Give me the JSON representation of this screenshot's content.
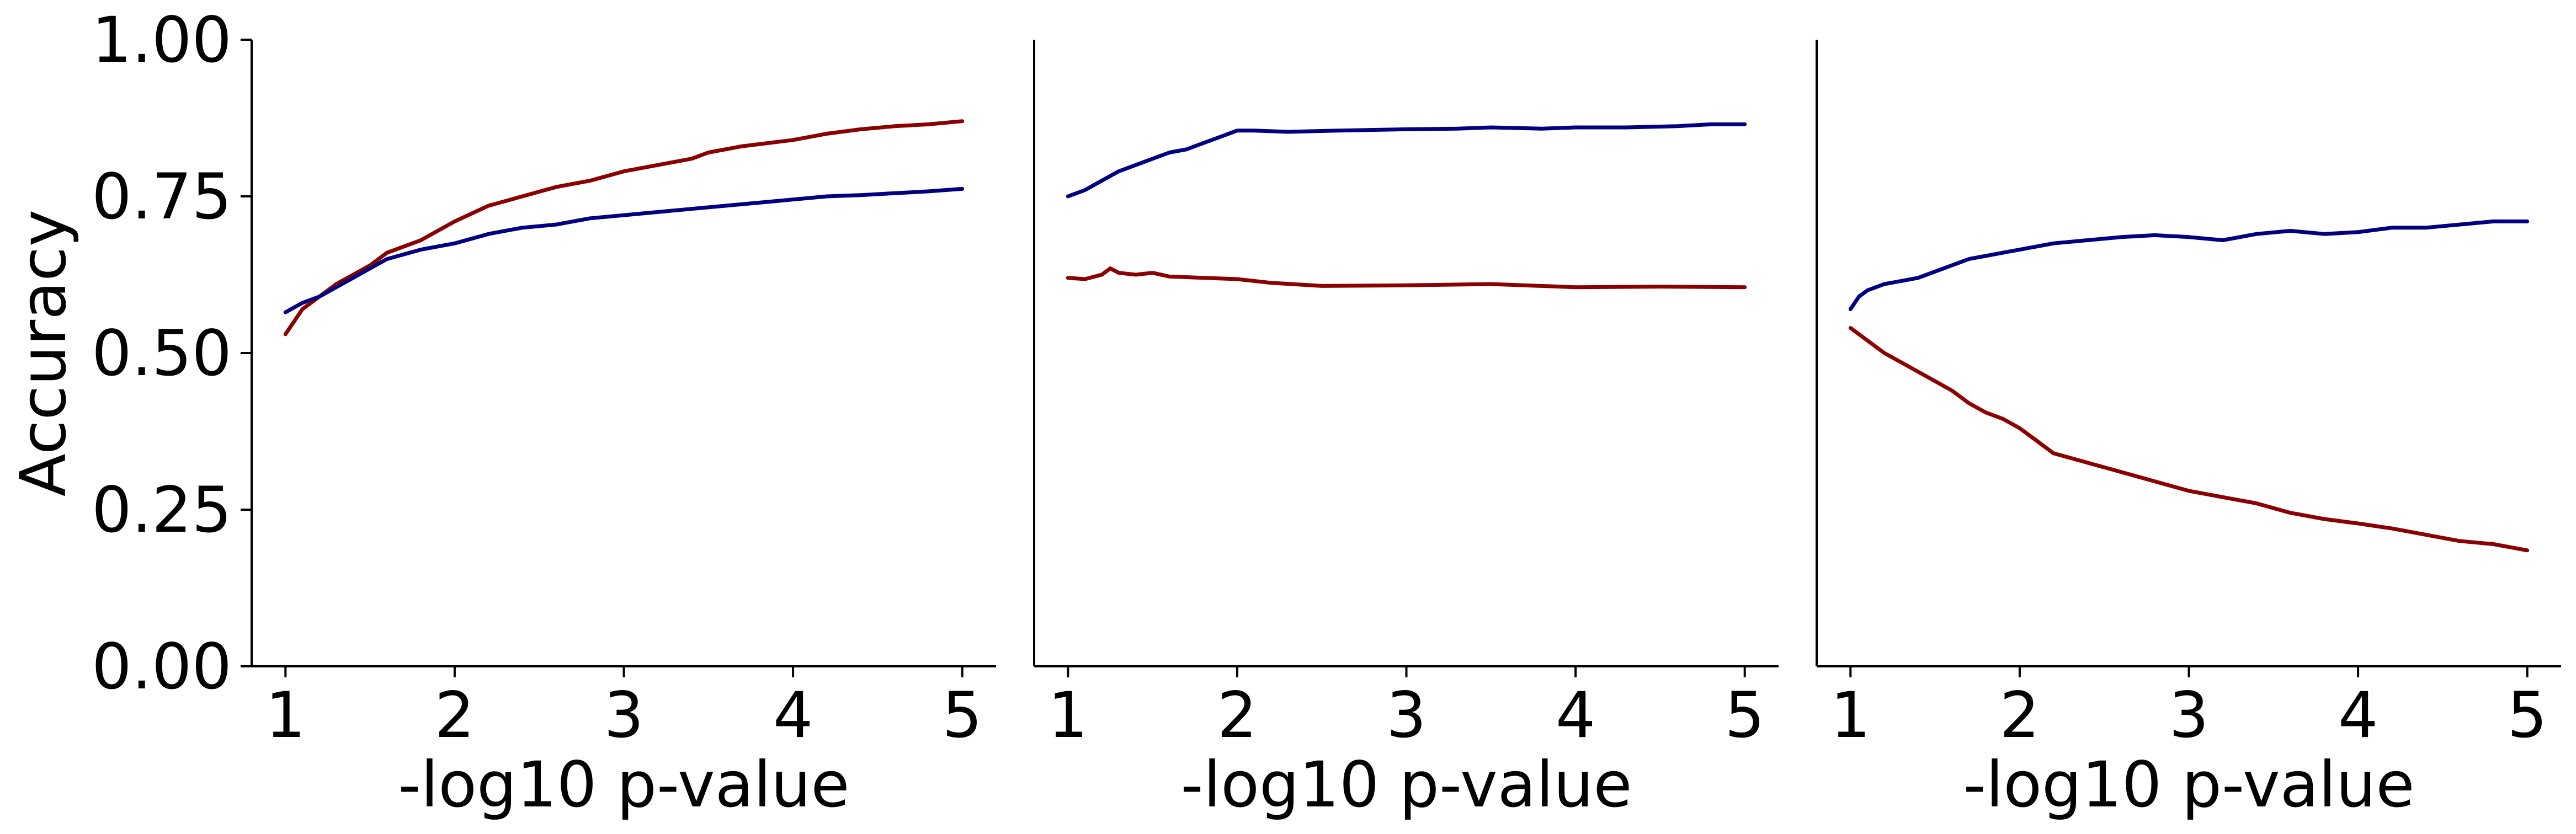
{
  "colors": {
    "red_series": "#8b0000",
    "blue_series": "#000080",
    "axis": "#000000"
  },
  "chart_data": [
    {
      "type": "line",
      "xlabel": "-log10 p-value",
      "ylabel": "Accuracy",
      "xlim": [
        0.8,
        5.2
      ],
      "ylim": [
        0.0,
        1.0
      ],
      "xticks": [
        "1",
        "2",
        "3",
        "4",
        "5"
      ],
      "yticks": [
        "0.00",
        "0.25",
        "0.50",
        "0.75",
        "1.00"
      ],
      "grid": false,
      "series": [
        {
          "color": "#8b0000",
          "x": [
            1.0,
            1.1,
            1.2,
            1.3,
            1.4,
            1.5,
            1.6,
            1.8,
            2.0,
            2.2,
            2.4,
            2.6,
            2.8,
            3.0,
            3.2,
            3.4,
            3.5,
            3.7,
            4.0,
            4.2,
            4.4,
            4.6,
            4.8,
            5.0
          ],
          "y": [
            0.53,
            0.57,
            0.59,
            0.61,
            0.625,
            0.64,
            0.66,
            0.68,
            0.71,
            0.735,
            0.75,
            0.765,
            0.775,
            0.79,
            0.8,
            0.81,
            0.82,
            0.83,
            0.84,
            0.85,
            0.857,
            0.862,
            0.865,
            0.87
          ]
        },
        {
          "color": "#000080",
          "x": [
            1.0,
            1.1,
            1.2,
            1.3,
            1.4,
            1.5,
            1.6,
            1.8,
            2.0,
            2.2,
            2.4,
            2.6,
            2.8,
            3.0,
            3.2,
            3.4,
            3.6,
            3.8,
            4.0,
            4.2,
            4.4,
            4.6,
            4.8,
            5.0
          ],
          "y": [
            0.565,
            0.58,
            0.59,
            0.605,
            0.62,
            0.635,
            0.65,
            0.665,
            0.675,
            0.69,
            0.7,
            0.705,
            0.715,
            0.72,
            0.725,
            0.73,
            0.735,
            0.74,
            0.745,
            0.75,
            0.752,
            0.755,
            0.758,
            0.762
          ]
        }
      ]
    },
    {
      "type": "line",
      "xlabel": "-log10 p-value",
      "ylabel": "",
      "xlim": [
        0.8,
        5.2
      ],
      "ylim": [
        0.0,
        1.0
      ],
      "xticks": [
        "1",
        "2",
        "3",
        "4",
        "5"
      ],
      "yticks": [],
      "grid": false,
      "series": [
        {
          "color": "#000080",
          "x": [
            1.0,
            1.1,
            1.2,
            1.3,
            1.4,
            1.5,
            1.6,
            1.7,
            1.8,
            1.9,
            2.0,
            2.1,
            2.3,
            2.6,
            3.0,
            3.3,
            3.5,
            3.8,
            4.0,
            4.3,
            4.6,
            4.8,
            5.0
          ],
          "y": [
            0.75,
            0.76,
            0.775,
            0.79,
            0.8,
            0.81,
            0.82,
            0.825,
            0.835,
            0.845,
            0.855,
            0.855,
            0.853,
            0.855,
            0.857,
            0.858,
            0.86,
            0.858,
            0.86,
            0.86,
            0.862,
            0.865,
            0.865
          ]
        },
        {
          "color": "#8b0000",
          "x": [
            1.0,
            1.1,
            1.2,
            1.25,
            1.3,
            1.4,
            1.5,
            1.6,
            1.8,
            2.0,
            2.2,
            2.5,
            3.0,
            3.5,
            4.0,
            4.5,
            5.0
          ],
          "y": [
            0.62,
            0.618,
            0.625,
            0.635,
            0.628,
            0.625,
            0.628,
            0.622,
            0.62,
            0.618,
            0.612,
            0.607,
            0.608,
            0.61,
            0.605,
            0.606,
            0.605
          ]
        }
      ]
    },
    {
      "type": "line",
      "xlabel": "-log10 p-value",
      "ylabel": "",
      "xlim": [
        0.8,
        5.2
      ],
      "ylim": [
        0.0,
        1.0
      ],
      "xticks": [
        "1",
        "2",
        "3",
        "4",
        "5"
      ],
      "yticks": [],
      "grid": false,
      "series": [
        {
          "color": "#000080",
          "x": [
            1.0,
            1.05,
            1.1,
            1.2,
            1.3,
            1.4,
            1.5,
            1.6,
            1.7,
            1.8,
            1.9,
            2.0,
            2.2,
            2.4,
            2.6,
            2.8,
            3.0,
            3.2,
            3.4,
            3.6,
            3.8,
            4.0,
            4.2,
            4.4,
            4.6,
            4.8,
            5.0
          ],
          "y": [
            0.57,
            0.59,
            0.6,
            0.61,
            0.615,
            0.62,
            0.63,
            0.64,
            0.65,
            0.655,
            0.66,
            0.665,
            0.675,
            0.68,
            0.685,
            0.688,
            0.685,
            0.68,
            0.69,
            0.695,
            0.69,
            0.693,
            0.7,
            0.7,
            0.705,
            0.71,
            0.71
          ]
        },
        {
          "color": "#8b0000",
          "x": [
            1.0,
            1.1,
            1.2,
            1.3,
            1.4,
            1.5,
            1.6,
            1.7,
            1.8,
            1.9,
            2.0,
            2.1,
            2.2,
            2.4,
            2.6,
            2.8,
            3.0,
            3.2,
            3.4,
            3.6,
            3.8,
            4.0,
            4.2,
            4.4,
            4.6,
            4.8,
            5.0
          ],
          "y": [
            0.54,
            0.52,
            0.5,
            0.485,
            0.47,
            0.455,
            0.44,
            0.42,
            0.405,
            0.395,
            0.38,
            0.36,
            0.34,
            0.325,
            0.31,
            0.295,
            0.28,
            0.27,
            0.26,
            0.245,
            0.235,
            0.228,
            0.22,
            0.21,
            0.2,
            0.195,
            0.185
          ]
        }
      ]
    }
  ]
}
